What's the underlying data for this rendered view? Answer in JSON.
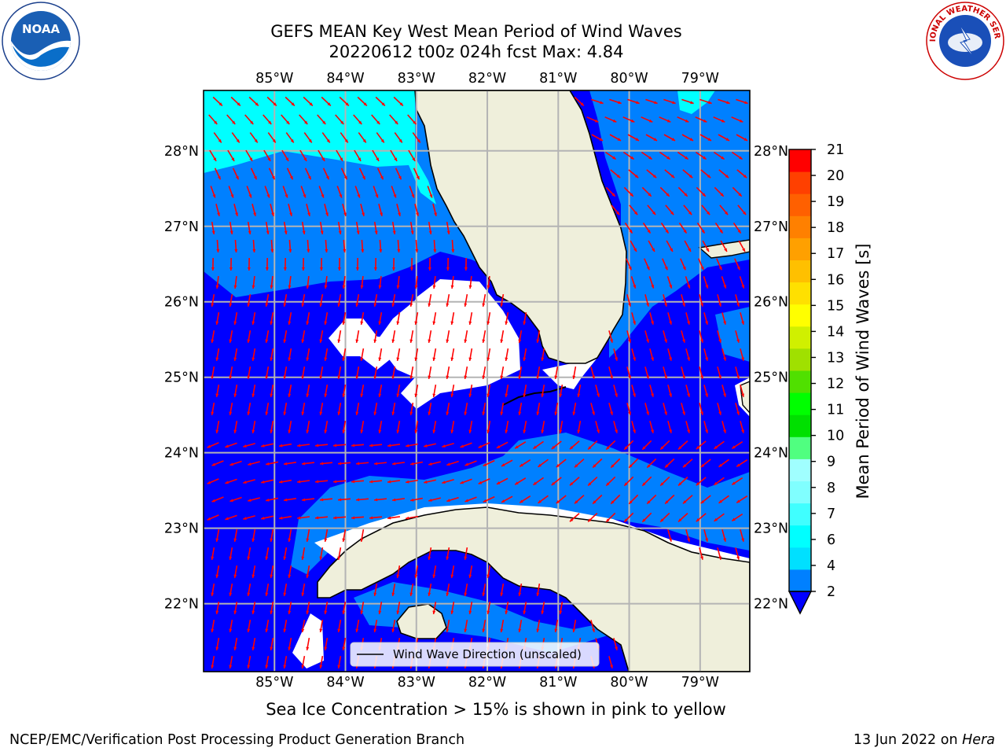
{
  "title": {
    "line1": "GEFS MEAN Key West Mean Period of Wind Waves",
    "line2": "20220612 t00z 024h fcst   Max: 4.84"
  },
  "map": {
    "lon_labels": [
      "85°W",
      "84°W",
      "83°W",
      "82°W",
      "81°W",
      "80°W",
      "79°W"
    ],
    "lat_labels": [
      "28°N",
      "27°N",
      "26°N",
      "25°N",
      "24°N",
      "23°N",
      "22°N"
    ],
    "extent": {
      "lon_min": -86.0,
      "lon_max": -78.3,
      "lat_min": 21.1,
      "lat_max": 28.8
    },
    "legend_label": "Wind Wave Direction (unscaled)",
    "arrow_color": "#ff0000",
    "land_color": "#efefdb",
    "colors": {
      "band_2_4": "#0000ff",
      "band_4_6": "#0080ff",
      "band_6_8": "#00ffff"
    }
  },
  "colorbar": {
    "label": "Mean Period of Wind Waves [s]",
    "ticks": [
      "21",
      "20",
      "19",
      "18",
      "17",
      "16",
      "15",
      "14",
      "13",
      "12",
      "11",
      "10",
      "9",
      "8",
      "7",
      "6",
      "4",
      "2"
    ],
    "colors_bottom_to_top": [
      "#0080ff",
      "#00e0ff",
      "#00ffff",
      "#40ffff",
      "#80ffff",
      "#a0ffff",
      "#50ff80",
      "#00e000",
      "#00ff00",
      "#50e000",
      "#a0e000",
      "#d0f000",
      "#ffff00",
      "#ffe000",
      "#ffc000",
      "#ffa000",
      "#ff8000",
      "#ff6000",
      "#ff4000",
      "#ff0000"
    ],
    "extend_low_color": "#0000ff"
  },
  "notes": {
    "sea_ice": "Sea Ice Concentration > 15% is shown in pink to yellow",
    "footer_left": "NCEP/EMC/Verification Post Processing Product Generation Branch",
    "footer_date": "13 Jun 2022 on",
    "footer_host": "Hera"
  },
  "logos": {
    "noaa": "NOAA",
    "nws": "NATIONAL WEATHER SERVICE"
  }
}
